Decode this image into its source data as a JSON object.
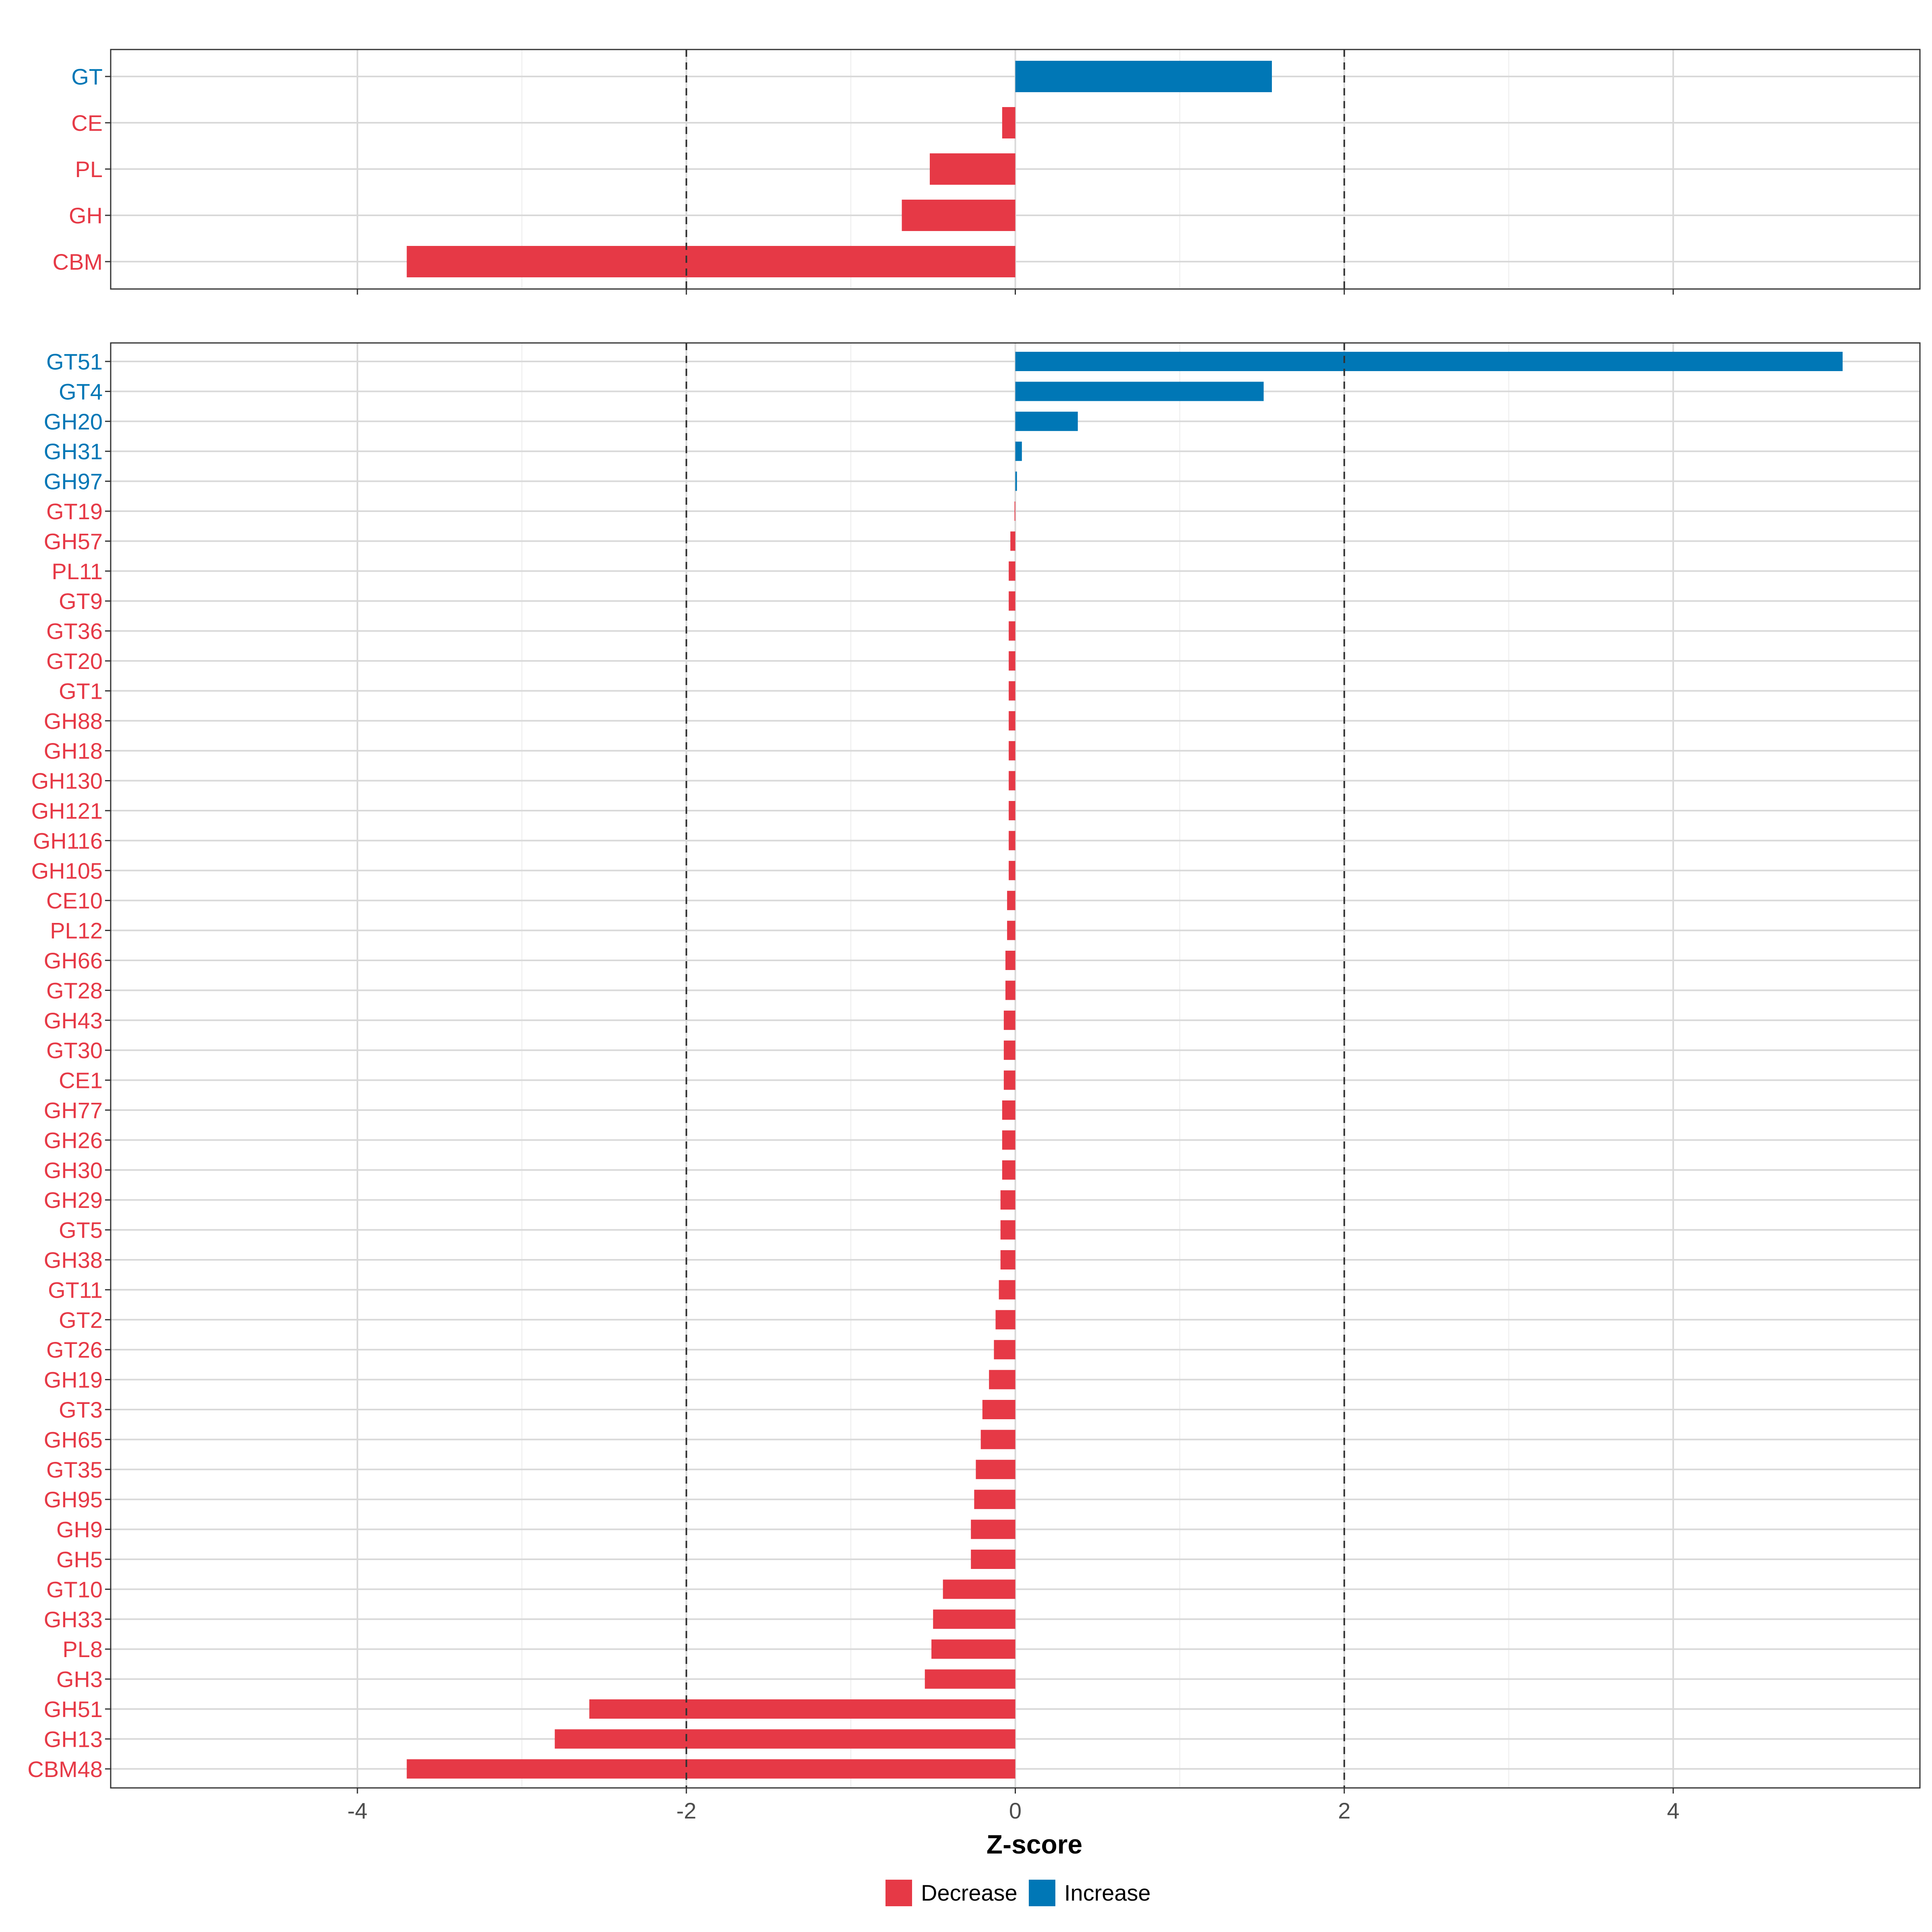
{
  "colors": {
    "decrease": "#e63946",
    "increase": "#0077b6"
  },
  "chart_data": [
    {
      "type": "bar",
      "orientation": "horizontal",
      "panel": "top",
      "categories": [
        "GT",
        "CE",
        "PL",
        "GH",
        "CBM"
      ],
      "values": [
        1.56,
        -0.08,
        -0.52,
        -0.69,
        -3.7
      ],
      "xlim": [
        -5.5,
        5.5
      ],
      "x_major_ticks": [
        -4,
        -2,
        0,
        2,
        4
      ],
      "reference_lines": [
        -2,
        2
      ],
      "grid": true
    },
    {
      "type": "bar",
      "orientation": "horizontal",
      "panel": "bottom",
      "categories": [
        "GT51",
        "GT4",
        "GH20",
        "GH31",
        "GH97",
        "GT19",
        "GH57",
        "PL11",
        "GT9",
        "GT36",
        "GT20",
        "GT1",
        "GH88",
        "GH18",
        "GH130",
        "GH121",
        "GH116",
        "GH105",
        "CE10",
        "PL12",
        "GH66",
        "GT28",
        "GH43",
        "GT30",
        "CE1",
        "GH77",
        "GH26",
        "GH30",
        "GH29",
        "GT5",
        "GH38",
        "GT11",
        "GT2",
        "GT26",
        "GH19",
        "GT3",
        "GH65",
        "GT35",
        "GH95",
        "GH9",
        "GH5",
        "GT10",
        "GH33",
        "PL8",
        "GH3",
        "GH51",
        "GH13",
        "CBM48"
      ],
      "values": [
        5.03,
        1.51,
        0.38,
        0.04,
        0.01,
        -0.005,
        -0.03,
        -0.04,
        -0.04,
        -0.04,
        -0.04,
        -0.04,
        -0.04,
        -0.04,
        -0.04,
        -0.04,
        -0.04,
        -0.04,
        -0.05,
        -0.05,
        -0.06,
        -0.06,
        -0.07,
        -0.07,
        -0.07,
        -0.08,
        -0.08,
        -0.08,
        -0.09,
        -0.09,
        -0.09,
        -0.1,
        -0.12,
        -0.13,
        -0.16,
        -0.2,
        -0.21,
        -0.24,
        -0.25,
        -0.27,
        -0.27,
        -0.44,
        -0.5,
        -0.51,
        -0.55,
        -2.59,
        -2.8,
        -3.7
      ],
      "xlim": [
        -5.5,
        5.5
      ],
      "x_major_ticks": [
        -4,
        -2,
        0,
        2,
        4
      ],
      "x_tick_labels": [
        "-4",
        "-2",
        "0",
        "2",
        "4"
      ],
      "xlabel": "Z-score",
      "reference_lines": [
        -2,
        2
      ],
      "grid": true
    }
  ],
  "legend": {
    "position": "bottom",
    "entries": [
      {
        "label": "Decrease",
        "color": "#e63946"
      },
      {
        "label": "Increase",
        "color": "#0077b6"
      }
    ]
  }
}
